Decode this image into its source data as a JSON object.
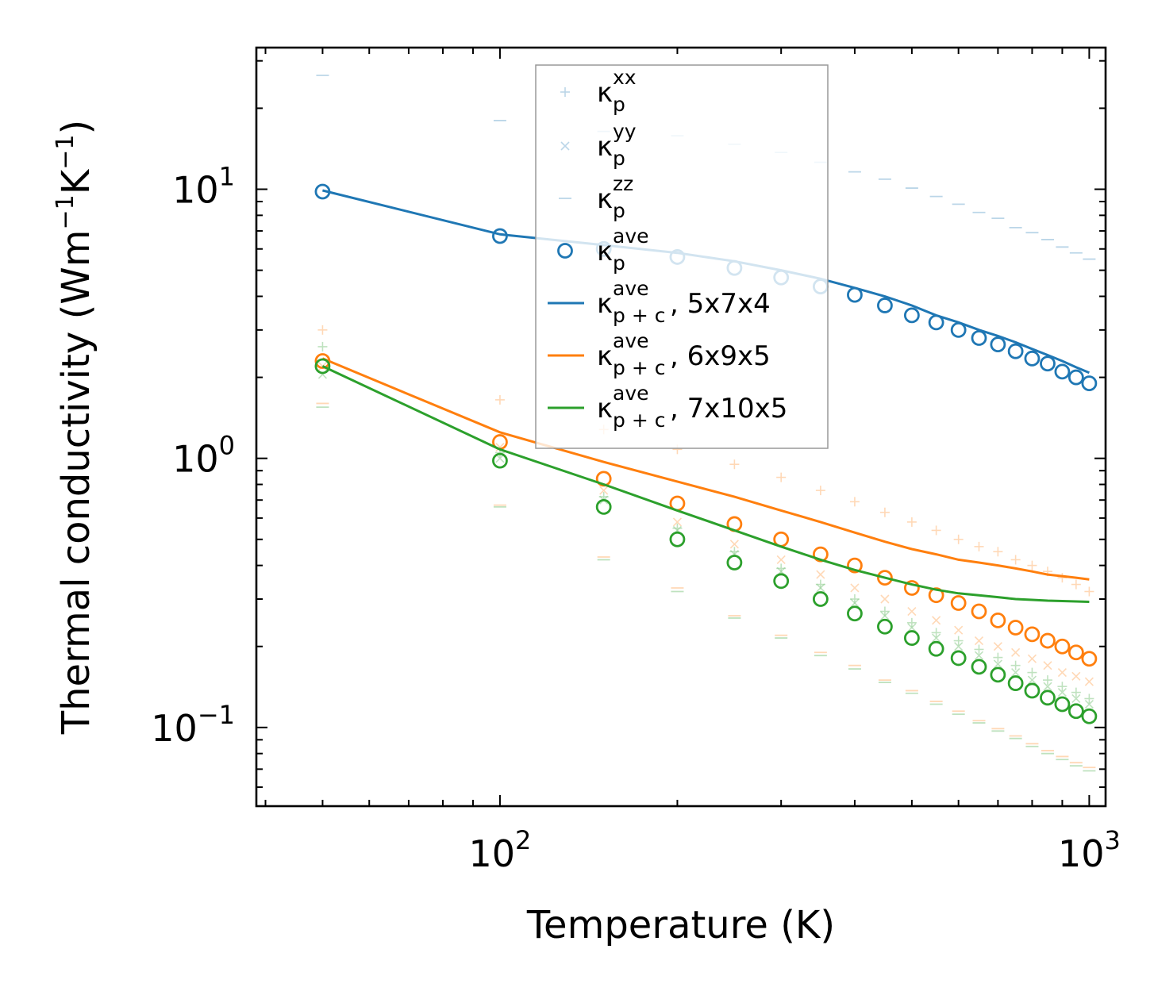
{
  "chart_data": {
    "type": "scatter",
    "title": "",
    "xlabel": "Temperature (K)",
    "ylabel": "Thermal conductivity (Wm",
    "ylabel_sup1": "−1",
    "ylabel_mid": "K",
    "ylabel_sup2": "−1",
    "ylabel_end": ")",
    "xscale": "log",
    "yscale": "log",
    "xlim": [
      38.6,
      1066
    ],
    "ylim": [
      0.051,
      33.6
    ],
    "x_ticks": [
      {
        "value": 100,
        "base": "10",
        "exp": "2"
      },
      {
        "value": 1000,
        "base": "10",
        "exp": "3"
      }
    ],
    "y_ticks": [
      {
        "value": 0.1,
        "base": "10",
        "exp": "−1"
      },
      {
        "value": 1,
        "base": "10",
        "exp": "0"
      },
      {
        "value": 10,
        "base": "10",
        "exp": "1"
      }
    ],
    "legend_position": "upper-center",
    "legend": [
      {
        "marker": "+",
        "base": "κ",
        "sub": "p",
        "sup": "xx",
        "suffix": "",
        "color": "#1f77b4"
      },
      {
        "marker": "x",
        "base": "κ",
        "sub": "p",
        "sup": "yy",
        "suffix": "",
        "color": "#1f77b4"
      },
      {
        "marker": "_",
        "base": "κ",
        "sub": "p",
        "sup": "zz",
        "suffix": "",
        "color": "#1f77b4"
      },
      {
        "marker": "o",
        "base": "κ",
        "sub": "p",
        "sup": "ave",
        "suffix": "",
        "color": "#1f77b4"
      },
      {
        "marker": "line",
        "base": "κ",
        "sub": "p + c",
        "sup": "ave",
        "suffix": ", 5x7x4",
        "color": "#1f77b4"
      },
      {
        "marker": "line",
        "base": "κ",
        "sub": "p + c",
        "sup": "ave",
        "suffix": ", 6x9x5",
        "color": "#ff7f0e"
      },
      {
        "marker": "line",
        "base": "κ",
        "sub": "p + c",
        "sup": "ave",
        "suffix": ", 7x10x5",
        "color": "#2ca02c"
      }
    ],
    "x": [
      50,
      100,
      150,
      200,
      250,
      300,
      350,
      400,
      450,
      500,
      550,
      600,
      650,
      700,
      750,
      800,
      850,
      900,
      950,
      1000
    ],
    "supercells": [
      {
        "name": "5x7x4",
        "color": "#1f77b4",
        "kp_xx": [
          null,
          null,
          null,
          null,
          null,
          null,
          null,
          null,
          null,
          null,
          null,
          null,
          null,
          null,
          null,
          null,
          null,
          null,
          null,
          null
        ],
        "kp_yy": [
          null,
          null,
          null,
          null,
          null,
          null,
          null,
          null,
          null,
          null,
          null,
          null,
          null,
          null,
          null,
          null,
          null,
          null,
          null,
          null
        ],
        "kp_zz": [
          26.5,
          18.0,
          16.4,
          15.8,
          14.7,
          13.7,
          12.6,
          11.6,
          10.9,
          10.1,
          9.4,
          8.8,
          8.2,
          7.8,
          7.2,
          6.9,
          6.5,
          6.1,
          5.8,
          5.5
        ],
        "kp_ave": [
          9.8,
          6.7,
          6.0,
          5.6,
          5.1,
          4.7,
          4.35,
          4.05,
          3.7,
          3.4,
          3.2,
          3.0,
          2.8,
          2.65,
          2.5,
          2.35,
          2.25,
          2.1,
          2.0,
          1.9
        ],
        "kpc_ave": [
          9.9,
          6.8,
          6.2,
          5.8,
          5.4,
          5.0,
          4.65,
          4.3,
          4.0,
          3.7,
          3.4,
          3.2,
          3.0,
          2.85,
          2.7,
          2.55,
          2.42,
          2.3,
          2.18,
          2.08
        ]
      },
      {
        "name": "6x9x5",
        "color": "#ff7f0e",
        "kp_xx": [
          3.0,
          1.65,
          1.28,
          1.08,
          0.95,
          0.85,
          0.76,
          0.69,
          0.63,
          0.58,
          0.54,
          0.5,
          0.47,
          0.45,
          0.42,
          0.4,
          0.38,
          0.36,
          0.34,
          0.32
        ],
        "kp_yy": [
          2.2,
          1.1,
          0.76,
          0.58,
          0.48,
          0.42,
          0.37,
          0.33,
          0.3,
          0.27,
          0.25,
          0.23,
          0.21,
          0.2,
          0.19,
          0.18,
          0.17,
          0.16,
          0.155,
          0.148
        ],
        "kp_zz": [
          1.6,
          0.67,
          0.43,
          0.33,
          0.26,
          0.22,
          0.19,
          0.17,
          0.15,
          0.137,
          0.125,
          0.115,
          0.106,
          0.099,
          0.093,
          0.087,
          0.082,
          0.078,
          0.074,
          0.071
        ],
        "kp_ave": [
          2.3,
          1.15,
          0.84,
          0.68,
          0.57,
          0.5,
          0.44,
          0.4,
          0.36,
          0.33,
          0.31,
          0.29,
          0.27,
          0.25,
          0.235,
          0.222,
          0.21,
          0.2,
          0.19,
          0.18
        ],
        "kpc_ave": [
          2.35,
          1.25,
          0.97,
          0.82,
          0.72,
          0.64,
          0.58,
          0.53,
          0.49,
          0.46,
          0.44,
          0.42,
          0.41,
          0.4,
          0.39,
          0.38,
          0.37,
          0.365,
          0.36,
          0.355
        ]
      },
      {
        "name": "7x10x5",
        "color": "#2ca02c",
        "kp_xx": [
          2.6,
          1.05,
          0.72,
          0.55,
          0.45,
          0.39,
          0.34,
          0.3,
          0.27,
          0.245,
          0.225,
          0.21,
          0.195,
          0.182,
          0.17,
          0.16,
          0.15,
          0.142,
          0.135,
          0.128
        ],
        "kp_yy": [
          2.05,
          1.0,
          0.7,
          0.54,
          0.44,
          0.38,
          0.33,
          0.29,
          0.26,
          0.235,
          0.215,
          0.2,
          0.185,
          0.172,
          0.16,
          0.15,
          0.142,
          0.135,
          0.128,
          0.122
        ],
        "kp_zz": [
          1.55,
          0.66,
          0.42,
          0.32,
          0.255,
          0.215,
          0.185,
          0.165,
          0.147,
          0.134,
          0.122,
          0.112,
          0.104,
          0.097,
          0.091,
          0.085,
          0.08,
          0.076,
          0.072,
          0.069
        ],
        "kp_ave": [
          2.2,
          0.98,
          0.66,
          0.5,
          0.41,
          0.35,
          0.3,
          0.265,
          0.237,
          0.215,
          0.196,
          0.181,
          0.168,
          0.157,
          0.146,
          0.137,
          0.129,
          0.122,
          0.115,
          0.11
        ],
        "kpc_ave": [
          2.2,
          1.08,
          0.8,
          0.64,
          0.54,
          0.47,
          0.42,
          0.385,
          0.36,
          0.34,
          0.325,
          0.315,
          0.31,
          0.305,
          0.3,
          0.298,
          0.296,
          0.295,
          0.294,
          0.293
        ]
      }
    ]
  }
}
